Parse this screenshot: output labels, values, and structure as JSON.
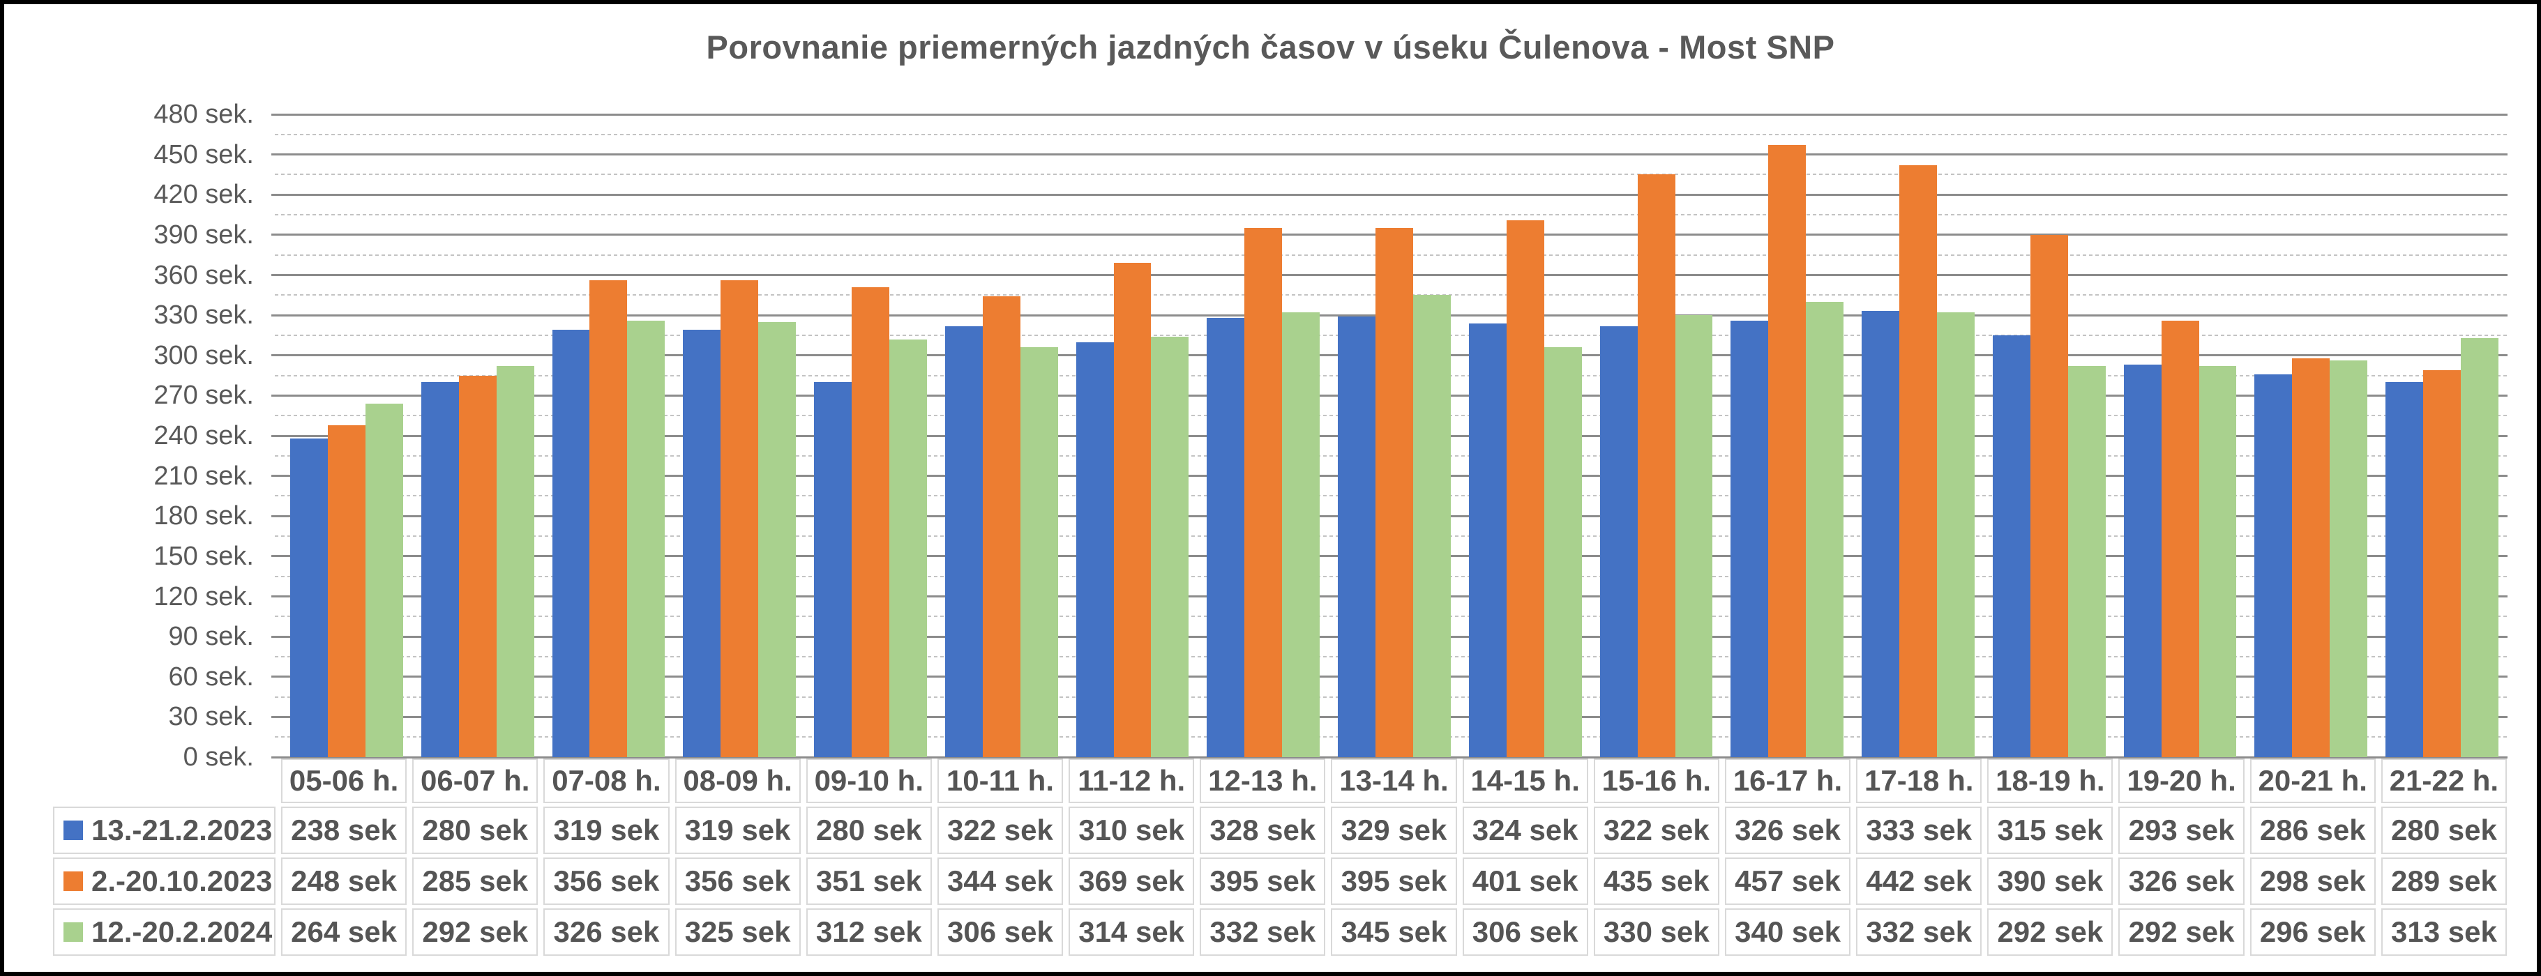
{
  "title": "Porovnanie priemerných jazdných časov v úseku Čulenova - Most SNP",
  "chart_data": {
    "type": "bar",
    "title": "Porovnanie priemerných jazdných časov v úseku Čulenova - Most SNP",
    "categories": [
      "05-06 h.",
      "06-07 h.",
      "07-08 h.",
      "08-09 h.",
      "09-10 h.",
      "10-11 h.",
      "11-12 h.",
      "12-13 h.",
      "13-14 h.",
      "14-15 h.",
      "15-16 h.",
      "16-17 h.",
      "17-18 h.",
      "18-19 h.",
      "19-20 h.",
      "20-21 h.",
      "21-22 h."
    ],
    "series": [
      {
        "name": "13.-21.2.2023",
        "color": "#4472C4",
        "values": [
          238,
          280,
          319,
          319,
          280,
          322,
          310,
          328,
          329,
          324,
          322,
          326,
          333,
          315,
          293,
          286,
          280
        ]
      },
      {
        "name": "2.-20.10.2023",
        "color": "#ED7D31",
        "values": [
          248,
          285,
          356,
          356,
          351,
          344,
          369,
          395,
          395,
          401,
          435,
          457,
          442,
          390,
          326,
          298,
          289
        ]
      },
      {
        "name": "12.-20.2.2024",
        "color": "#A9D18E",
        "values": [
          264,
          292,
          326,
          325,
          312,
          306,
          314,
          332,
          345,
          306,
          330,
          340,
          332,
          292,
          292,
          296,
          313
        ]
      }
    ],
    "y_axis": {
      "min": 0,
      "max": 480,
      "major_step": 30,
      "minor_step": 15,
      "tick_suffix": " sek."
    },
    "table_cell_suffix": " sek",
    "grid": true,
    "legend_position": "data-table-left",
    "colors": {
      "axis_text": "#595959",
      "major_gridline": "#8c8c8c",
      "minor_gridline": "#c3c3c3",
      "table_border": "#d9d9d9",
      "frame_border": "#000000"
    }
  }
}
